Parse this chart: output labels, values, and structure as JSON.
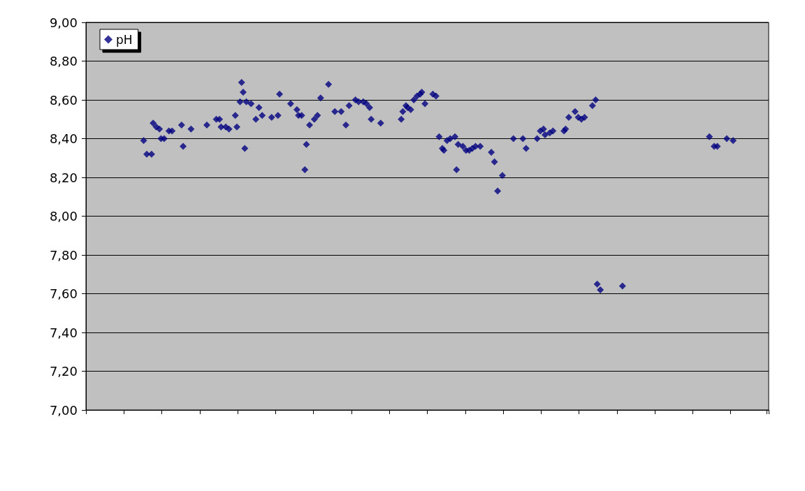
{
  "chart_data": {
    "type": "scatter",
    "categories": [
      null,
      null,
      null,
      null,
      null,
      null,
      null,
      null,
      null,
      null,
      null,
      null,
      null,
      null,
      null,
      null,
      null,
      null,
      null,
      null,
      null,
      null,
      null,
      null,
      null,
      null,
      null,
      null,
      null,
      null,
      null,
      null,
      null,
      null,
      null,
      null,
      null,
      null,
      null,
      null,
      null,
      null,
      null,
      null,
      null,
      null,
      null,
      null,
      null,
      null,
      null,
      null,
      null,
      null,
      null,
      null,
      null,
      null,
      null,
      null,
      null,
      null,
      null,
      null,
      null,
      null,
      null,
      null,
      null,
      null,
      null,
      null,
      null,
      null,
      null,
      null,
      null,
      null,
      null,
      null,
      null,
      null,
      null,
      null,
      null,
      null,
      null,
      null,
      null,
      null,
      null,
      null,
      null,
      null,
      null,
      null,
      null,
      null,
      null,
      null,
      null,
      null,
      null,
      null,
      null,
      null,
      null,
      null,
      null,
      null,
      null,
      null,
      null,
      null,
      null,
      null,
      null,
      null,
      null,
      null,
      null,
      null,
      null,
      null,
      null,
      null,
      null,
      null,
      null,
      null,
      null,
      null,
      null,
      null,
      null,
      null,
      null,
      null,
      null,
      null,
      null,
      null,
      null,
      null,
      null,
      null,
      null,
      null,
      null,
      null,
      null,
      null,
      null,
      null,
      null,
      null,
      null,
      null,
      null,
      null,
      null,
      null,
      null,
      null,
      null,
      null,
      null,
      null,
      null,
      null,
      null,
      null,
      null,
      null,
      null,
      null,
      null,
      null,
      null,
      null,
      null,
      null,
      null,
      null,
      null,
      null,
      null,
      null,
      null,
      null,
      null,
      null,
      null,
      null,
      null,
      null,
      null,
      null,
      null,
      null,
      null,
      null,
      null,
      null,
      null,
      null,
      null,
      null,
      null,
      null,
      null,
      null,
      null,
      null,
      null,
      null,
      null,
      null,
      null,
      null,
      null,
      null,
      null,
      null,
      null,
      null,
      null,
      null,
      null,
      null,
      null,
      null,
      null,
      null,
      null,
      null,
      null,
      null,
      null,
      null,
      null,
      null,
      null,
      null,
      null,
      null,
      null,
      null,
      null,
      null,
      null,
      null,
      null,
      null,
      null,
      null,
      null,
      null,
      null,
      null,
      null,
      null,
      null,
      null,
      null,
      null,
      null,
      null,
      null,
      null,
      null,
      null,
      null,
      null,
      null,
      null,
      null,
      null,
      null,
      null,
      null,
      null,
      null,
      null,
      null,
      null,
      null,
      null,
      null,
      null,
      null,
      null,
      null,
      null,
      null,
      null,
      null,
      null,
      null,
      null,
      null,
      null,
      null,
      null,
      null,
      null,
      null,
      null,
      null,
      null,
      null,
      null,
      null,
      null,
      null,
      null,
      null,
      null,
      null,
      null,
      null,
      null,
      null,
      null,
      null,
      null,
      null,
      null,
      null,
      null,
      null,
      null,
      null,
      null,
      null,
      null,
      null,
      null,
      null,
      null,
      null,
      null,
      null,
      null,
      null,
      null,
      null,
      null,
      null,
      null,
      null,
      null,
      null,
      null,
      null,
      null,
      null,
      null,
      null,
      null,
      null,
      null,
      null,
      null,
      null,
      null,
      null,
      null,
      null,
      null,
      null,
      null,
      null,
      null,
      null,
      null,
      null,
      null,
      null,
      null,
      null,
      null,
      null,
      null,
      null,
      null,
      null,
      null,
      null,
      null,
      null,
      null,
      null,
      null,
      null,
      null,
      null,
      null,
      null,
      null,
      null,
      null,
      null,
      null,
      null,
      null,
      null,
      null,
      null,
      null,
      null,
      null,
      null,
      null,
      null,
      null,
      null,
      null,
      null,
      null,
      null,
      null,
      null,
      null,
      null,
      null,
      null,
      null,
      null,
      null,
      null,
      null
    ],
    "series": [
      {
        "name": "pH",
        "color": "#000080",
        "values": [
          null,
          null,
          null,
          null,
          null,
          null,
          null,
          null,
          null,
          null,
          null,
          null,
          null,
          null,
          null,
          null,
          null,
          null,
          null,
          null,
          null,
          null,
          null,
          null,
          null,
          null,
          null,
          null,
          null,
          null,
          null,
          null,
          null,
          null,
          null,
          null,
          8.39,
          null,
          8.32,
          null,
          null,
          8.32,
          8.48,
          null,
          8.46,
          null,
          8.45,
          8.4,
          null,
          8.4,
          null,
          null,
          8.44,
          null,
          8.44,
          null,
          null,
          null,
          null,
          null,
          8.47,
          8.36,
          null,
          null,
          null,
          null,
          8.45,
          null,
          null,
          null,
          null,
          null,
          null,
          null,
          null,
          null,
          8.47,
          null,
          null,
          null,
          null,
          null,
          8.5,
          null,
          8.5,
          8.46,
          null,
          null,
          8.46,
          null,
          8.45,
          null,
          null,
          null,
          8.52,
          8.46,
          null,
          8.59,
          8.69,
          8.64,
          8.35,
          8.59,
          null,
          null,
          8.58,
          null,
          null,
          8.5,
          null,
          8.56,
          null,
          8.52,
          null,
          null,
          null,
          null,
          null,
          8.51,
          null,
          null,
          null,
          8.52,
          8.63,
          null,
          null,
          null,
          null,
          null,
          null,
          8.58,
          null,
          null,
          null,
          8.55,
          8.52,
          null,
          8.52,
          null,
          8.24,
          8.37,
          null,
          8.47,
          null,
          null,
          8.5,
          null,
          8.52,
          null,
          8.61,
          null,
          null,
          null,
          null,
          8.68,
          null,
          null,
          null,
          8.54,
          null,
          null,
          null,
          8.54,
          null,
          null,
          8.47,
          null,
          8.57,
          null,
          null,
          null,
          8.6,
          null,
          8.59,
          null,
          null,
          8.59,
          null,
          8.58,
          null,
          8.56,
          8.5,
          null,
          null,
          null,
          null,
          null,
          8.48,
          null,
          null,
          null,
          null,
          null,
          null,
          null,
          null,
          null,
          null,
          null,
          null,
          8.5,
          8.54,
          null,
          8.57,
          8.56,
          null,
          8.55,
          null,
          8.6,
          null,
          8.62,
          null,
          8.63,
          8.64,
          null,
          8.58,
          null,
          null,
          null,
          null,
          8.63,
          null,
          8.62,
          null,
          8.41,
          null,
          8.35,
          8.34,
          null,
          8.39,
          null,
          8.4,
          null,
          null,
          8.41,
          8.24,
          8.37,
          null,
          null,
          8.36,
          null,
          8.34,
          null,
          8.34,
          null,
          8.35,
          null,
          8.36,
          null,
          null,
          8.36,
          null,
          null,
          null,
          null,
          null,
          null,
          8.33,
          null,
          8.28,
          null,
          8.13,
          null,
          null,
          8.21,
          null,
          null,
          null,
          null,
          null,
          null,
          8.4,
          null,
          null,
          null,
          null,
          null,
          8.4,
          null,
          8.35,
          null,
          null,
          null,
          null,
          null,
          null,
          8.4,
          null,
          8.44,
          null,
          8.45,
          8.42,
          null,
          null,
          8.43,
          null,
          8.44,
          null,
          null,
          null,
          null,
          null,
          null,
          8.44,
          8.45,
          null,
          8.51,
          null,
          null,
          null,
          8.54,
          null,
          8.51,
          null,
          8.5,
          null,
          8.51,
          null,
          null,
          null,
          null,
          8.57,
          null,
          8.6,
          7.65,
          null,
          7.62,
          null,
          null,
          null,
          null,
          null,
          null,
          null,
          null,
          null,
          null,
          null,
          null,
          null,
          7.64,
          null,
          null,
          null,
          null,
          null,
          null,
          null,
          null,
          null,
          null,
          null,
          null,
          null,
          null,
          null,
          null,
          null,
          null,
          null,
          null,
          null,
          null,
          null,
          null,
          null,
          null,
          null,
          null,
          null,
          null,
          null,
          null,
          null,
          null,
          null,
          null,
          null,
          null,
          null,
          null,
          null,
          null,
          null,
          null,
          null,
          null,
          null,
          null,
          null,
          null,
          null,
          null,
          null,
          null,
          8.41,
          null,
          null,
          8.36,
          null,
          8.36,
          null,
          null,
          null,
          null,
          null,
          8.4,
          null,
          null,
          null,
          8.39,
          null,
          null,
          null,
          null,
          null,
          null,
          null,
          null,
          null,
          null,
          null,
          null,
          null,
          null,
          null,
          null,
          null,
          null,
          null,
          null,
          null,
          null
        ]
      }
    ],
    "ylim": [
      7,
      9
    ],
    "yticks": [
      {
        "value": 7,
        "label": "7,00"
      },
      {
        "value": 7.2,
        "label": "7,20"
      },
      {
        "value": 7.4,
        "label": "7,40"
      },
      {
        "value": 7.6,
        "label": "7,60"
      },
      {
        "value": 7.8,
        "label": "7,80"
      },
      {
        "value": 8,
        "label": "8,00"
      },
      {
        "value": 8.2,
        "label": "8,20"
      },
      {
        "value": 8.4,
        "label": "8,40"
      },
      {
        "value": 8.6,
        "label": "8,60"
      },
      {
        "value": 8.8,
        "label": "8,80"
      },
      {
        "value": 9,
        "label": "9,00"
      }
    ],
    "grid": "y",
    "legend": "top left",
    "marker": "diamond",
    "tick_labels": "y"
  }
}
